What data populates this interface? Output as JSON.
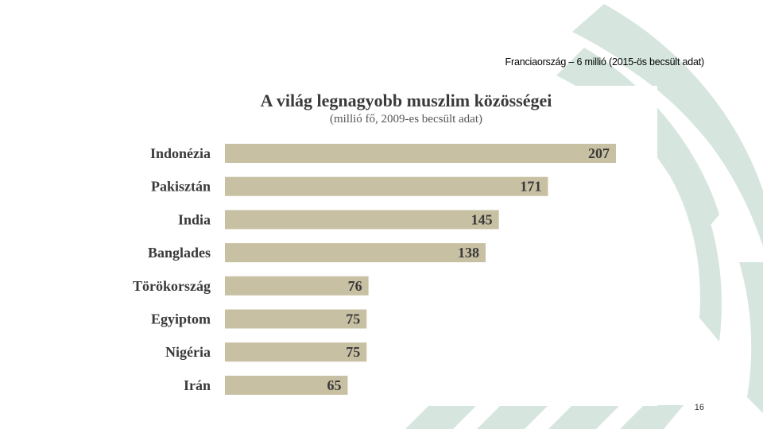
{
  "slide": {
    "note": "Franciaország – 6 millió (2015-ös becsült adat)",
    "page_number": "16"
  },
  "colors": {
    "bar": "#c8c0a2",
    "label": "#3a3a3a",
    "decor": "#d6e6de"
  },
  "chart_data": {
    "type": "bar",
    "orientation": "horizontal",
    "title": "A világ legnagyobb muszlim közösségei",
    "subtitle": "(millió fő, 2009-es becsült adat)",
    "categories": [
      "Indonézia",
      "Pakisztán",
      "India",
      "Banglades",
      "Törökország",
      "Egyiptom",
      "Nigéria",
      "Irán"
    ],
    "values": [
      207,
      171,
      145,
      138,
      76,
      75,
      75,
      65
    ],
    "data_labels": [
      "207",
      "171",
      "145",
      "138",
      "76",
      "75",
      "75",
      "65"
    ],
    "xlim": [
      0,
      207
    ],
    "grid": false,
    "legend": "none"
  }
}
